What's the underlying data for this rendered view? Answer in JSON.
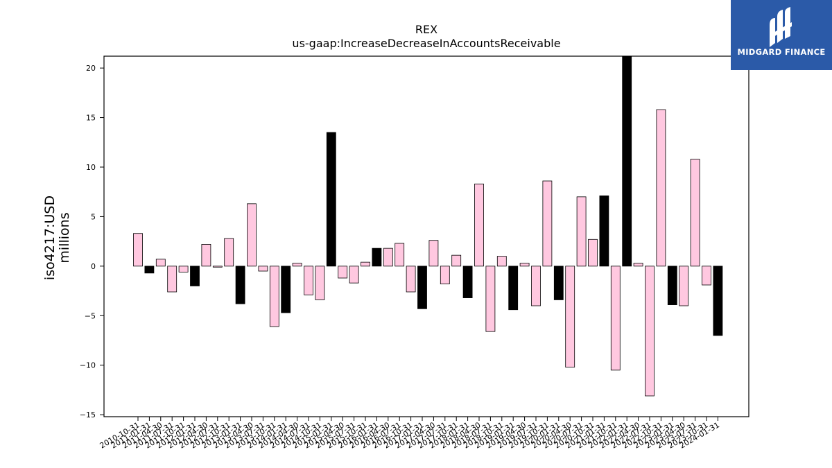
{
  "chart_data": {
    "type": "bar",
    "title": "REX",
    "subtitle": "us-gaap:IncreaseDecreaseInAccountsReceivable",
    "ylabel": "iso4217:USD\nmillions",
    "xlabel": "",
    "ylim": [
      -15.2,
      21.2
    ],
    "yticks": [
      -15,
      -10,
      -5,
      0,
      5,
      10,
      15,
      20
    ],
    "grid": false,
    "legend": "none",
    "colors": {
      "default": "#ffc8e0",
      "highlight": "#000000",
      "edge": "#000000"
    },
    "categories": [
      "2010-10-31",
      "2011-01-31",
      "2011-04-30",
      "2011-07-31",
      "2011-10-31",
      "2012-01-31",
      "2012-04-30",
      "2012-07-31",
      "2012-10-31",
      "2013-01-31",
      "2013-04-30",
      "2013-07-31",
      "2013-10-31",
      "2014-01-31",
      "2014-04-30",
      "2014-07-31",
      "2014-10-31",
      "2015-01-31",
      "2015-04-30",
      "2015-07-31",
      "2015-10-31",
      "2016-01-31",
      "2016-04-30",
      "2016-07-31",
      "2016-10-31",
      "2017-01-31",
      "2017-04-30",
      "2017-07-31",
      "2017-10-31",
      "2018-01-31",
      "2018-04-30",
      "2018-07-31",
      "2018-10-31",
      "2019-01-31",
      "2019-04-30",
      "2019-07-31",
      "2019-10-31",
      "2020-01-31",
      "2020-04-30",
      "2020-07-31",
      "2020-10-31",
      "2021-01-31",
      "2021-10-31",
      "2022-01-31",
      "2022-04-30",
      "2022-07-31",
      "2022-10-31",
      "2023-01-31",
      "2023-04-30",
      "2023-07-31",
      "2023-10-31",
      "2024-01-31"
    ],
    "values": [
      3.3,
      -0.7,
      0.7,
      -2.6,
      -0.6,
      -2.0,
      2.2,
      -0.1,
      2.8,
      -3.8,
      6.3,
      -0.5,
      -6.1,
      -4.7,
      0.3,
      -2.9,
      -3.4,
      13.5,
      -1.2,
      -1.7,
      0.4,
      1.8,
      1.8,
      2.3,
      -2.6,
      -4.3,
      2.6,
      -1.8,
      1.1,
      -3.2,
      8.3,
      -6.6,
      1.0,
      -4.4,
      0.3,
      -4.0,
      8.6,
      -3.4,
      -10.2,
      7.0,
      2.7,
      7.1,
      -10.5,
      21.2,
      0.3,
      -13.1,
      15.8,
      -3.9,
      -4.0,
      10.8,
      -1.9,
      -7.0
    ],
    "highlight": [
      false,
      true,
      false,
      false,
      false,
      true,
      false,
      false,
      false,
      true,
      false,
      false,
      false,
      true,
      false,
      false,
      false,
      true,
      false,
      false,
      false,
      true,
      false,
      false,
      false,
      true,
      false,
      false,
      false,
      true,
      false,
      false,
      false,
      true,
      false,
      false,
      false,
      true,
      false,
      false,
      false,
      true,
      false,
      true,
      false,
      false,
      false,
      true,
      false,
      false,
      false,
      true
    ]
  },
  "logo": {
    "text": "MIDGARD FINANCE"
  }
}
